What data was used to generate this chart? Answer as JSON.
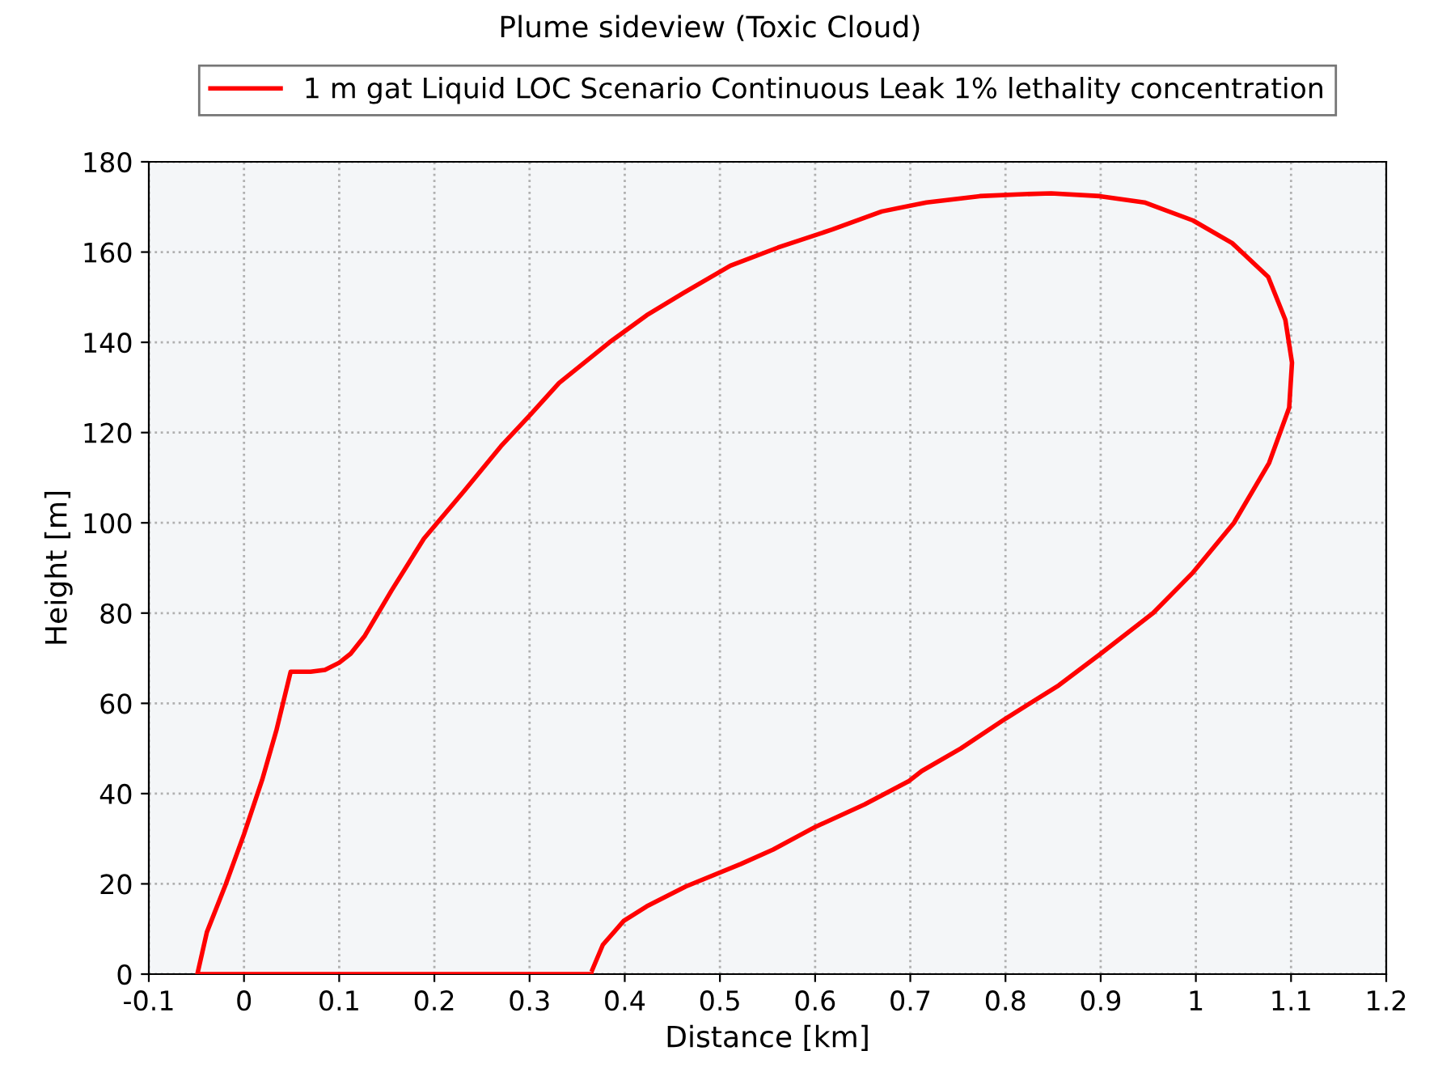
{
  "chart_data": {
    "type": "line",
    "title": "Plume sideview (Toxic Cloud)",
    "xlabel": "Distance [km]",
    "ylabel": "Height [m]",
    "series": [
      {
        "name": "1 m gat Liquid LOC Scenario Continuous Leak 1% lethality concentration",
        "color": "#ff0000",
        "x": [
          0.365,
          -0.049,
          -0.039,
          -0.019,
          0,
          0.019,
          0.034,
          0.049,
          0.054,
          0.07,
          0.085,
          0.1,
          0.112,
          0.127,
          0.155,
          0.189,
          0.231,
          0.27,
          0.301,
          0.331,
          0.384,
          0.423,
          0.462,
          0.511,
          0.561,
          0.618,
          0.67,
          0.717,
          0.773,
          0.814,
          0.848,
          0.899,
          0.946,
          0.997,
          1.038,
          1.076,
          1.094,
          1.101,
          1.098,
          1.077,
          1.04,
          0.997,
          0.955,
          0.9,
          0.856,
          0.8,
          0.753,
          0.712,
          0.698,
          0.652,
          0.6,
          0.556,
          0.522,
          0.464,
          0.423,
          0.399,
          0.377,
          0.366
        ],
        "values": [
          0,
          0,
          9.3,
          20,
          31,
          43,
          54,
          67,
          67,
          67,
          67.4,
          69,
          71,
          75,
          85,
          96.5,
          107,
          117,
          124,
          131,
          140,
          146,
          151,
          157,
          161,
          165,
          169,
          171,
          172.4,
          172.8,
          173,
          172.4,
          171,
          167,
          162,
          154.5,
          145,
          135.5,
          125.5,
          113.3,
          100,
          89,
          80,
          71,
          64,
          56.6,
          50,
          45,
          42.7,
          37.6,
          32.6,
          27.6,
          24.4,
          19.4,
          15,
          11.8,
          6.5,
          1
        ]
      }
    ],
    "xlim": [
      -0.1,
      1.2
    ],
    "xticks": [
      -0.1,
      0,
      0.1,
      0.2,
      0.3,
      0.4,
      0.5,
      0.6,
      0.7,
      0.8,
      0.9,
      1,
      1.1,
      1.2
    ],
    "ylim": [
      0,
      180
    ],
    "yticks": [
      0,
      20,
      40,
      60,
      80,
      100,
      120,
      140,
      160,
      180
    ],
    "grid": true,
    "legend": "top",
    "marker": "none",
    "line_style": "solid"
  }
}
